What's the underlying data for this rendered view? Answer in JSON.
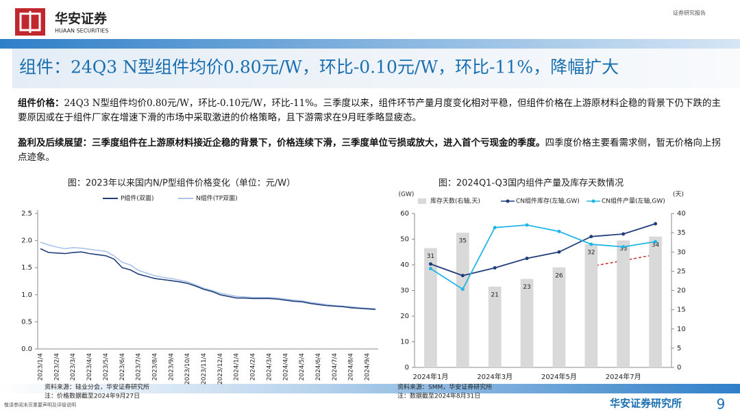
{
  "header": {
    "logo_cn": "华安证券",
    "logo_en": "HUAAN SECURITIES",
    "report_type": "证券研究报告"
  },
  "title": "组件：24Q3 N型组件均价0.80元/W，环比-0.10元/W，环比-11%，降幅扩大",
  "paragraphs": [
    {
      "lead": "组件价格：",
      "text": "24Q3 N型组件均价0.80元/W，环比-0.10元/W，环比-11%。三季度以来，组件环节产量月度变化相对平稳，但组件价格在上游原材料企稳的背景下仍下跌的主要原因或在于组件厂家在增速下滑的市场中采取激进的价格策略，且下游需求在9月旺季略显疲态。"
    },
    {
      "lead": "盈利及后续展望：三季度组件在上游原材料接近企稳的背景下，价格连续下滑，三季度单位亏损或放大，进入首个亏现金的季度。",
      "text": "四季度价格主要看需求侧，暂无价格向上拐点迹象。"
    }
  ],
  "chart_data": [
    {
      "type": "line",
      "title": "图：2023年以来国内N/P型组件价格变化（单位：元/W）",
      "categories": [
        "2023/1/4",
        null,
        "2023/2/4",
        null,
        "2023/3/4",
        null,
        "2023/4/4",
        null,
        "2023/5/4",
        null,
        "2023/6/4",
        null,
        "2023/7/4",
        null,
        "2023/8/4",
        null,
        "2023/9/4",
        null,
        "2023/10/4",
        null,
        "2023/11/4",
        null,
        "2023/12/4",
        null,
        "2024/1/4",
        null,
        "2024/2/4",
        null,
        "2024/3/4",
        null,
        "2024/4/4",
        null,
        "2024/5/4",
        null,
        "2024/6/4",
        null,
        "2024/7/4",
        null,
        "2024/8/4",
        null,
        "2024/9/4",
        null
      ],
      "series": [
        {
          "name": "P组件(双面)",
          "color": "#1f3d7a",
          "values": [
            1.85,
            1.78,
            1.77,
            1.76,
            1.78,
            1.79,
            1.76,
            1.74,
            1.72,
            1.66,
            1.5,
            1.46,
            1.38,
            1.34,
            1.3,
            1.28,
            1.26,
            1.24,
            1.21,
            1.16,
            1.1,
            1.06,
            1.0,
            0.97,
            0.94,
            0.94,
            0.93,
            0.93,
            0.93,
            0.92,
            0.9,
            0.88,
            0.87,
            0.84,
            0.82,
            0.8,
            0.79,
            0.78,
            0.76,
            0.75,
            0.74,
            0.73
          ]
        },
        {
          "name": "N组件(TP双面)",
          "color": "#a9c4e8",
          "values": [
            1.97,
            1.92,
            1.88,
            1.85,
            1.87,
            1.86,
            1.84,
            1.82,
            1.8,
            1.72,
            1.6,
            1.55,
            1.45,
            1.4,
            1.35,
            1.32,
            1.3,
            1.27,
            1.24,
            1.18,
            1.12,
            1.08,
            1.03,
            1.0,
            0.97,
            0.96,
            0.95,
            0.95,
            0.95,
            0.94,
            0.92,
            0.9,
            0.89,
            0.86,
            0.84,
            0.82,
            0.8,
            0.79,
            0.78,
            0.76,
            0.75,
            0.74
          ]
        }
      ],
      "ylim": [
        0,
        2.5
      ],
      "yticks": [
        {
          "value": 0,
          "label": "0.0"
        },
        0.5,
        {
          "value": 1,
          "label": "1.0"
        },
        1.5,
        {
          "value": 2,
          "label": "2.0"
        },
        2.5
      ],
      "grid": false,
      "source": "资料来源：硅业分会，华安证券研究所",
      "note": "注：价格数据截至2024年9月27日"
    },
    {
      "type": "combo",
      "title": "图：2024Q1-Q3国内组件产量及库存天数情况",
      "categories": [
        "2024年1月",
        null,
        "2024年3月",
        null,
        "2024年5月",
        null,
        "2024年7月",
        null
      ],
      "series": [
        {
          "name": "库存天数(右轴,天)",
          "type": "bar",
          "axis": "y2",
          "color": "#d9d9d9",
          "values": [
            31,
            35,
            21,
            23,
            26,
            32,
            33,
            34
          ]
        },
        {
          "name": "CN组件库存(左轴,GW)",
          "type": "line",
          "color": "#1f3d7a",
          "values": [
            40.3,
            35.8,
            38.8,
            42.5,
            45,
            51,
            52,
            56
          ]
        },
        {
          "name": "CN组件产量(左轴,GW)",
          "type": "line",
          "color": "#1fb5e6",
          "values": [
            38.5,
            30.5,
            54.5,
            55.5,
            53,
            48,
            47,
            49
          ]
        }
      ],
      "ylabel": "(GW)",
      "y2label": "(天)",
      "ylim": [
        0,
        60
      ],
      "yticks": [
        0,
        10,
        20,
        30,
        40,
        50,
        60
      ],
      "y2lim": [
        0,
        40
      ],
      "y2ticks": [
        0,
        5,
        10,
        15,
        20,
        25,
        30,
        35,
        40
      ],
      "grid": false,
      "source": "资料来源：SMM，华安证券研究所",
      "note": "注：数据截至2024年8月31日"
    }
  ],
  "footer": {
    "disclaimer": "敬请参阅末页重要声明及评级说明",
    "org": "华安证券研究所",
    "page": "9"
  }
}
